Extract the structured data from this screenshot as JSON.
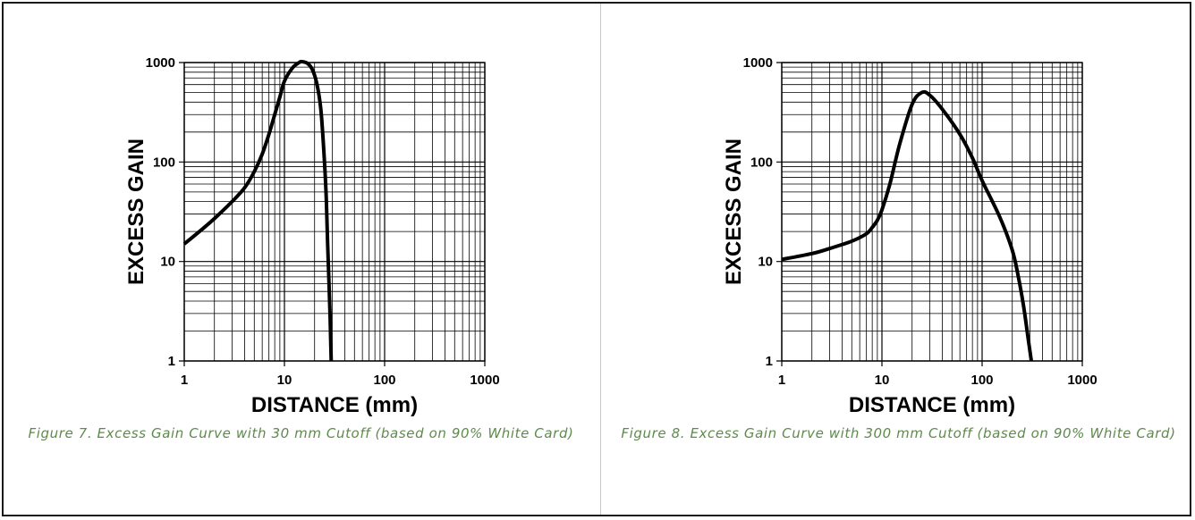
{
  "chart_data": [
    {
      "type": "line",
      "xlabel": "DISTANCE (mm)",
      "ylabel": "EXCESS GAIN",
      "x_scale": "log",
      "y_scale": "log",
      "xlim": [
        1,
        1000
      ],
      "ylim": [
        1,
        1000
      ],
      "x_ticks": [
        "1",
        "10",
        "100",
        "1000"
      ],
      "y_ticks": [
        "1",
        "10",
        "100",
        "1000"
      ],
      "grid": true,
      "line_color": "#000000",
      "series": [
        {
          "x": [
            1,
            1.5,
            2,
            3,
            4,
            5,
            6,
            7,
            8,
            9,
            10,
            12,
            14,
            15,
            17,
            19,
            21,
            23,
            24.5,
            26,
            27,
            28.5,
            29.3
          ],
          "y": [
            15,
            21,
            27,
            40,
            55,
            80,
            120,
            190,
            300,
            450,
            650,
            880,
            1000,
            1020,
            980,
            850,
            620,
            350,
            150,
            50,
            15,
            3,
            1
          ]
        }
      ],
      "caption": "Figure 7. Excess Gain Curve with 30 mm Cutoff (based on 90% White Card)"
    },
    {
      "type": "line",
      "xlabel": "DISTANCE (mm)",
      "ylabel": "EXCESS GAIN",
      "x_scale": "log",
      "y_scale": "log",
      "xlim": [
        1,
        1000
      ],
      "ylim": [
        1,
        1000
      ],
      "x_ticks": [
        "1",
        "10",
        "100",
        "1000"
      ],
      "y_ticks": [
        "1",
        "10",
        "100",
        "1000"
      ],
      "grid": true,
      "line_color": "#000000",
      "series": [
        {
          "x": [
            1,
            2,
            3,
            5,
            7,
            8,
            9,
            10,
            12,
            15,
            20,
            25,
            30,
            40,
            60,
            80,
            100,
            150,
            200,
            230,
            260,
            290,
            310
          ],
          "y": [
            10.5,
            12,
            13.5,
            16,
            19,
            22,
            26,
            33,
            60,
            150,
            380,
            500,
            470,
            340,
            190,
            110,
            65,
            28,
            13,
            7,
            3.5,
            1.6,
            1
          ]
        }
      ],
      "caption": "Figure 8. Excess Gain Curve with 300 mm Cutoff (based on 90% White Card)"
    }
  ]
}
